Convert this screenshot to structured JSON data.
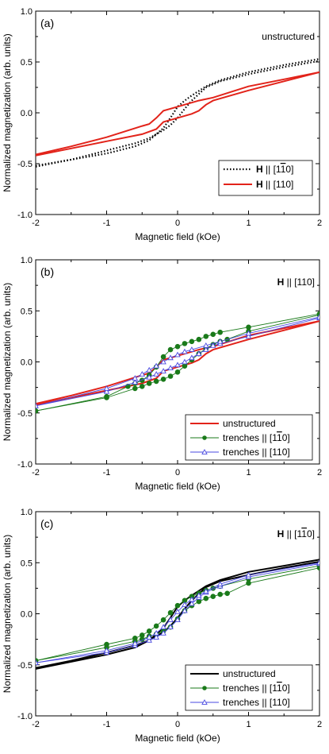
{
  "chart_data": [
    {
      "type": "line",
      "panel_label": "(a)",
      "annotation": "unstructured",
      "xlabel": "Magnetic field (kOe)",
      "ylabel": "Normalized magnetization (arb. units)",
      "xlim": [
        -2,
        2
      ],
      "ylim": [
        -1.0,
        1.0
      ],
      "xticks": [
        "-2",
        "-1",
        "0",
        "1",
        "2"
      ],
      "yticks": [
        "-1.0",
        "-0.5",
        "0.0",
        "0.5",
        "1.0"
      ],
      "legend_position": "bottom-right",
      "series": [
        {
          "name_parts": [
            "H",
            " || [1",
            "1",
            "0]"
          ],
          "overbar_index": 2,
          "color": "#000000",
          "style": "dotted",
          "marker": "none",
          "branches": [
            {
              "x": [
                -2,
                -1.5,
                -1,
                -0.6,
                -0.4,
                -0.2,
                -0.1,
                0,
                0.1,
                0.2,
                0.4,
                0.6,
                1,
                1.5,
                2
              ],
              "y": [
                -0.52,
                -0.46,
                -0.37,
                -0.3,
                -0.25,
                -0.17,
                -0.12,
                -0.05,
                0.04,
                0.12,
                0.25,
                0.31,
                0.38,
                0.45,
                0.51
              ]
            },
            {
              "x": [
                -2,
                -1.5,
                -1,
                -0.6,
                -0.4,
                -0.2,
                -0.1,
                0,
                0.1,
                0.2,
                0.4,
                0.6,
                1,
                1.5,
                2
              ],
              "y": [
                -0.53,
                -0.46,
                -0.4,
                -0.33,
                -0.27,
                -0.15,
                -0.05,
                0.06,
                0.12,
                0.17,
                0.26,
                0.32,
                0.4,
                0.47,
                0.53
              ]
            }
          ]
        },
        {
          "name_parts": [
            "H",
            " || [110]"
          ],
          "overbar_index": -1,
          "color": "#e2231a",
          "style": "solid",
          "marker": "none",
          "branches": [
            {
              "x": [
                -2,
                -1.5,
                -1,
                -0.5,
                -0.3,
                -0.2,
                0,
                0.2,
                0.3,
                0.4,
                0.5,
                1,
                1.5,
                2
              ],
              "y": [
                -0.42,
                -0.35,
                -0.28,
                -0.21,
                -0.16,
                -0.09,
                -0.05,
                -0.01,
                0.02,
                0.08,
                0.12,
                0.22,
                0.31,
                0.4
              ]
            },
            {
              "x": [
                -2,
                -1.5,
                -1,
                -0.5,
                -0.4,
                -0.3,
                -0.2,
                0,
                0.3,
                0.5,
                1,
                1.5,
                2
              ],
              "y": [
                -0.41,
                -0.33,
                -0.24,
                -0.13,
                -0.11,
                -0.05,
                0.02,
                0.06,
                0.12,
                0.15,
                0.26,
                0.33,
                0.4
              ]
            }
          ]
        }
      ]
    },
    {
      "type": "line",
      "panel_label": "(b)",
      "annotation_parts": [
        "H",
        " || [110]"
      ],
      "annotation_overbar_index": -1,
      "xlabel": "Magnetic field (kOe)",
      "ylabel": "Normalized magnetization (arb. units)",
      "xlim": [
        -2,
        2
      ],
      "ylim": [
        -1.0,
        1.0
      ],
      "xticks": [
        "-2",
        "-1",
        "0",
        "1",
        "2"
      ],
      "yticks": [
        "-1.0",
        "-0.5",
        "0.0",
        "0.5",
        "1.0"
      ],
      "legend_position": "bottom-right",
      "series": [
        {
          "name_parts": [
            "unstructured"
          ],
          "overbar_index": -1,
          "color": "#e2231a",
          "style": "solid",
          "marker": "none",
          "branches": [
            {
              "x": [
                -2,
                -1.5,
                -1,
                -0.5,
                -0.3,
                -0.2,
                0,
                0.2,
                0.3,
                0.4,
                0.5,
                1,
                1.5,
                2
              ],
              "y": [
                -0.42,
                -0.35,
                -0.28,
                -0.21,
                -0.16,
                -0.09,
                -0.05,
                -0.01,
                0.02,
                0.08,
                0.12,
                0.22,
                0.31,
                0.4
              ]
            },
            {
              "x": [
                -2,
                -1.5,
                -1,
                -0.5,
                -0.4,
                -0.3,
                -0.2,
                0,
                0.3,
                0.5,
                1,
                1.5,
                2
              ],
              "y": [
                -0.41,
                -0.33,
                -0.24,
                -0.13,
                -0.11,
                -0.05,
                0.02,
                0.06,
                0.12,
                0.15,
                0.26,
                0.33,
                0.4
              ]
            }
          ]
        },
        {
          "name_parts": [
            "trenches || [1",
            "1",
            "0]"
          ],
          "overbar_index": 1,
          "color": "#1a7a1a",
          "style": "solid",
          "marker": "dot",
          "branches": [
            {
              "x": [
                -2,
                -1,
                -0.6,
                -0.5,
                -0.4,
                -0.3,
                -0.2,
                -0.1,
                0,
                0.1,
                0.2,
                0.3,
                0.4,
                0.5,
                0.6,
                0.7,
                1,
                2
              ],
              "y": [
                -0.48,
                -0.35,
                -0.26,
                -0.24,
                -0.21,
                -0.19,
                -0.17,
                -0.14,
                -0.1,
                -0.04,
                0.02,
                0.08,
                0.13,
                0.17,
                0.2,
                0.22,
                0.3,
                0.46
              ]
            },
            {
              "x": [
                -2,
                -1,
                -0.7,
                -0.6,
                -0.5,
                -0.4,
                -0.3,
                -0.2,
                -0.1,
                0,
                0.1,
                0.2,
                0.3,
                0.4,
                0.5,
                0.6,
                1,
                2
              ],
              "y": [
                -0.48,
                -0.34,
                -0.24,
                -0.21,
                -0.18,
                -0.13,
                -0.05,
                0.05,
                0.12,
                0.15,
                0.18,
                0.2,
                0.22,
                0.25,
                0.27,
                0.29,
                0.34,
                0.47
              ]
            }
          ]
        },
        {
          "name_parts": [
            "trenches || [110]"
          ],
          "overbar_index": -1,
          "color": "#4a4ae0",
          "style": "solid",
          "marker": "triangle",
          "branches": [
            {
              "x": [
                -2,
                -1,
                -0.6,
                -0.4,
                -0.3,
                -0.2,
                -0.1,
                0,
                0.1,
                0.2,
                0.3,
                0.4,
                0.5,
                0.6,
                1,
                2
              ],
              "y": [
                -0.43,
                -0.29,
                -0.2,
                -0.15,
                -0.12,
                -0.09,
                -0.06,
                -0.03,
                0.0,
                0.04,
                0.08,
                0.12,
                0.16,
                0.18,
                0.25,
                0.43
              ]
            },
            {
              "x": [
                -2,
                -1,
                -0.6,
                -0.5,
                -0.4,
                -0.3,
                -0.2,
                -0.1,
                0,
                0.1,
                0.2,
                0.4,
                0.6,
                1,
                2
              ],
              "y": [
                -0.43,
                -0.26,
                -0.16,
                -0.12,
                -0.08,
                -0.04,
                0.0,
                0.04,
                0.07,
                0.1,
                0.12,
                0.16,
                0.2,
                0.28,
                0.44
              ]
            }
          ]
        }
      ]
    },
    {
      "type": "line",
      "panel_label": "(c)",
      "annotation_parts": [
        "H",
        " || [1",
        "1",
        "0]"
      ],
      "annotation_overbar_index": 2,
      "xlabel": "Magnetic field (kOe)",
      "ylabel": "Normalized magnetization (arb. units)",
      "xlim": [
        -2,
        2
      ],
      "ylim": [
        -1.0,
        1.0
      ],
      "xticks": [
        "-2",
        "-1",
        "0",
        "1",
        "2"
      ],
      "yticks": [
        "-1.0",
        "-0.5",
        "0.0",
        "0.5",
        "1.0"
      ],
      "legend_position": "bottom-right",
      "series": [
        {
          "name_parts": [
            "unstructured"
          ],
          "overbar_index": -1,
          "color": "#000000",
          "style": "solid",
          "marker": "none",
          "branches": [
            {
              "x": [
                -2,
                -1.5,
                -1,
                -0.6,
                -0.4,
                -0.2,
                -0.1,
                0,
                0.1,
                0.2,
                0.4,
                0.6,
                1,
                1.5,
                2
              ],
              "y": [
                -0.53,
                -0.46,
                -0.38,
                -0.31,
                -0.26,
                -0.18,
                -0.12,
                -0.04,
                0.05,
                0.13,
                0.26,
                0.32,
                0.38,
                0.45,
                0.51
              ]
            },
            {
              "x": [
                -2,
                -1.5,
                -1,
                -0.6,
                -0.4,
                -0.2,
                -0.1,
                0,
                0.1,
                0.2,
                0.4,
                0.6,
                1,
                1.5,
                2
              ],
              "y": [
                -0.54,
                -0.47,
                -0.4,
                -0.33,
                -0.26,
                -0.14,
                -0.04,
                0.07,
                0.13,
                0.18,
                0.27,
                0.33,
                0.41,
                0.47,
                0.53
              ]
            }
          ]
        },
        {
          "name_parts": [
            "trenches || [1",
            "1",
            "0]"
          ],
          "overbar_index": 1,
          "color": "#1a7a1a",
          "style": "solid",
          "marker": "dot",
          "branches": [
            {
              "x": [
                -2,
                -1,
                -0.6,
                -0.5,
                -0.4,
                -0.3,
                -0.2,
                -0.1,
                0,
                0.1,
                0.2,
                0.3,
                0.4,
                0.5,
                0.6,
                0.7,
                1,
                2
              ],
              "y": [
                -0.46,
                -0.33,
                -0.27,
                -0.25,
                -0.22,
                -0.2,
                -0.17,
                -0.13,
                -0.05,
                0.03,
                0.08,
                0.12,
                0.15,
                0.17,
                0.19,
                0.2,
                0.3,
                0.45
              ]
            },
            {
              "x": [
                -2,
                -1,
                -0.6,
                -0.5,
                -0.4,
                -0.3,
                -0.2,
                -0.1,
                0,
                0.1,
                0.2,
                0.3,
                0.4,
                0.5,
                0.6,
                1,
                2
              ],
              "y": [
                -0.46,
                -0.3,
                -0.24,
                -0.21,
                -0.17,
                -0.12,
                -0.06,
                0.01,
                0.08,
                0.13,
                0.17,
                0.2,
                0.23,
                0.25,
                0.27,
                0.34,
                0.47
              ]
            }
          ]
        },
        {
          "name_parts": [
            "trenches || [110]"
          ],
          "overbar_index": -1,
          "color": "#4a4ae0",
          "style": "solid",
          "marker": "triangle",
          "branches": [
            {
              "x": [
                -2,
                -1,
                -0.6,
                -0.4,
                -0.3,
                -0.2,
                -0.1,
                0,
                0.1,
                0.2,
                0.3,
                0.4,
                0.6,
                1,
                2
              ],
              "y": [
                -0.48,
                -0.38,
                -0.31,
                -0.26,
                -0.23,
                -0.19,
                -0.13,
                -0.06,
                0.03,
                0.1,
                0.16,
                0.21,
                0.27,
                0.36,
                0.49
              ]
            },
            {
              "x": [
                -2,
                -1,
                -0.6,
                -0.4,
                -0.3,
                -0.2,
                -0.1,
                0,
                0.1,
                0.2,
                0.3,
                0.4,
                0.6,
                1,
                2
              ],
              "y": [
                -0.48,
                -0.36,
                -0.29,
                -0.23,
                -0.19,
                -0.13,
                -0.06,
                0.02,
                0.09,
                0.14,
                0.18,
                0.22,
                0.29,
                0.38,
                0.5
              ]
            }
          ]
        }
      ]
    }
  ]
}
